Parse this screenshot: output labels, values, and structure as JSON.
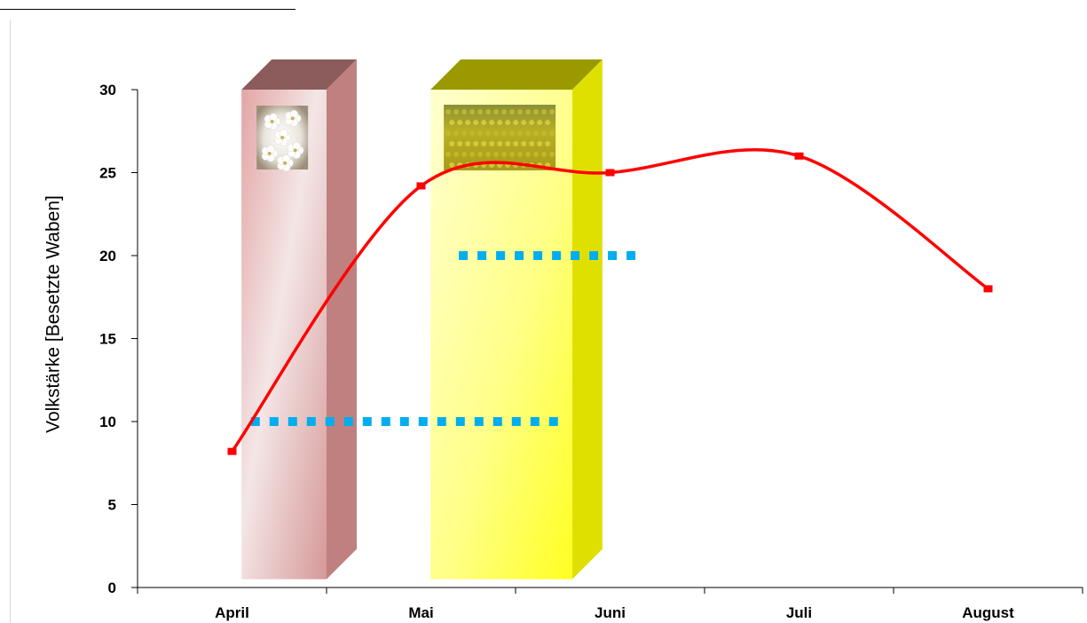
{
  "chart_data": {
    "type": "line",
    "categories": [
      "April",
      "Mai",
      "Juni",
      "Juli",
      "August"
    ],
    "series": [
      {
        "values": [
          8.2,
          24.2,
          25,
          26,
          18
        ],
        "color": "#ff0000",
        "smooth": true
      }
    ],
    "reference_lines": [
      {
        "y": 10,
        "x_from": 0.1,
        "x_to": 1.75,
        "color": "#00aeef",
        "style": "dotted"
      },
      {
        "y": 20,
        "x_from": 1.2,
        "x_to": 2.15,
        "color": "#00aeef",
        "style": "dotted"
      }
    ],
    "bloom_periods": [
      {
        "icon": "cherry-blossom-photo",
        "x_from": 0.05,
        "x_to": 0.5,
        "y_to": 30,
        "face_color": "#e8b8b8",
        "side_color": "#c08080",
        "top_color": "#8c5c5c"
      },
      {
        "icon": "rapeseed-field-photo",
        "x_from": 1.05,
        "x_to": 1.8,
        "y_to": 30,
        "face_color": "#ffff66",
        "side_color": "#e0e000",
        "top_color": "#9a9a00"
      }
    ],
    "title": "",
    "xlabel": "",
    "ylabel": "Volkstärke [Besetzte Waben]",
    "ylim": [
      0,
      30
    ],
    "yticks": [
      0,
      5,
      10,
      15,
      20,
      25,
      30
    ],
    "grid": false
  }
}
